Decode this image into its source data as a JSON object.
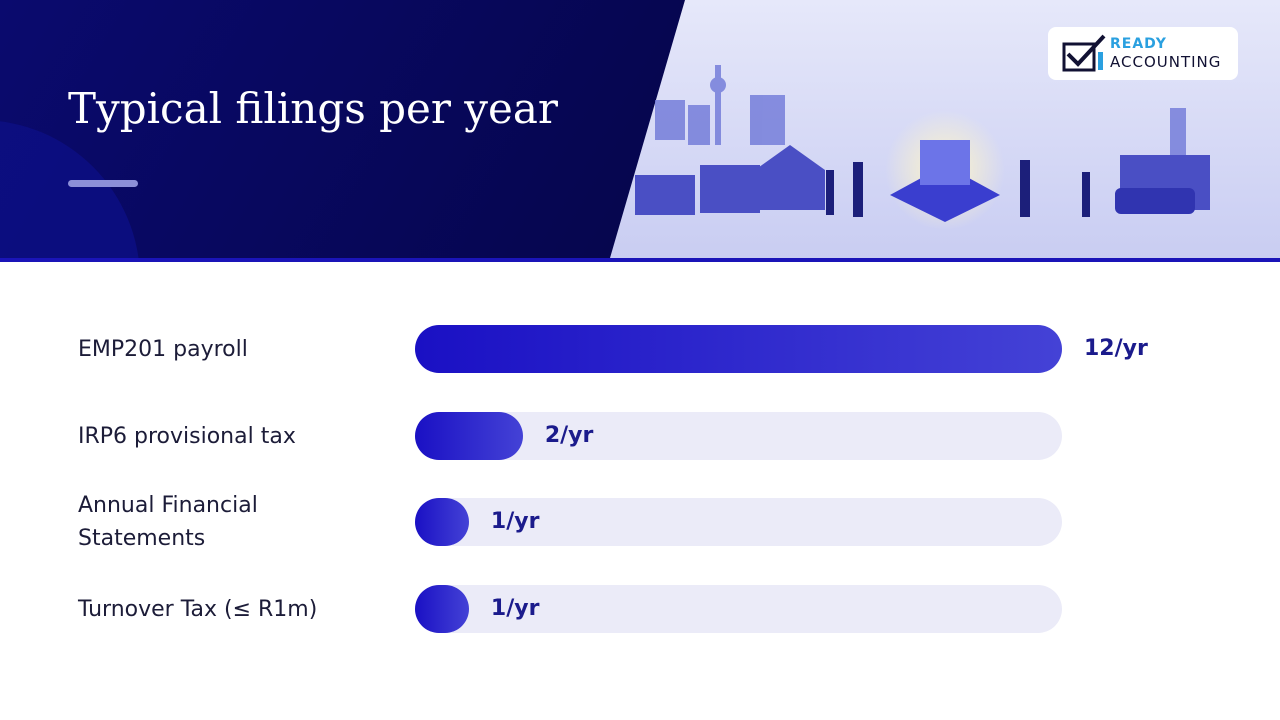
{
  "chart_data": {
    "type": "bar",
    "orientation": "horizontal",
    "title": "Typical filings per year",
    "logo": [
      "READY",
      "ACCOUNTING"
    ],
    "categories": [
      "EMP201 payroll",
      "IRP6 provisional tax",
      "Annual Financial Statements",
      "Turnover Tax (≤ R1m)"
    ],
    "values": [
      12,
      2,
      1,
      1
    ],
    "value_labels": [
      "12/yr",
      "2/yr",
      "1/yr",
      "1/yr"
    ],
    "xlim": [
      0,
      12
    ],
    "color": "#1a10c4"
  }
}
